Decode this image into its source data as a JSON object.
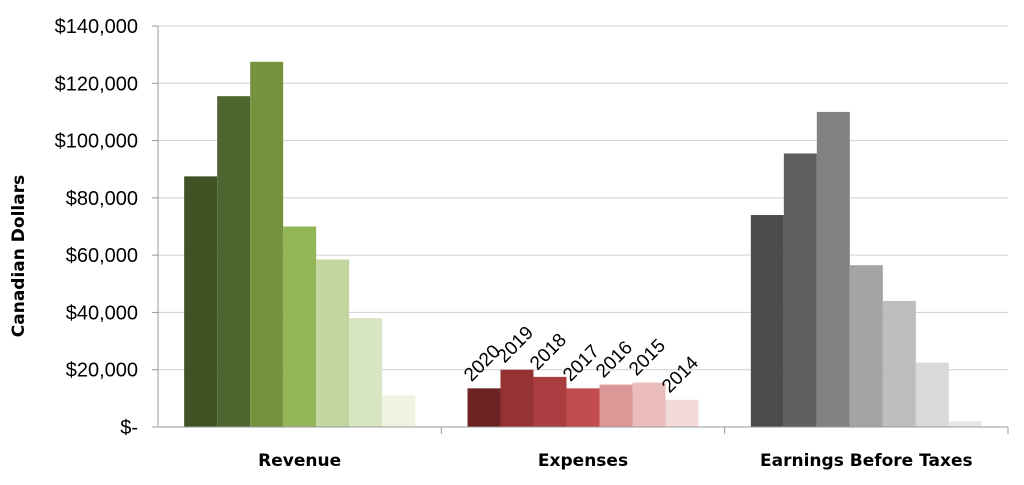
{
  "chart_data": {
    "type": "bar",
    "ylabel": "Canadian Dollars",
    "ylim": [
      0,
      140000
    ],
    "yticks": [
      0,
      20000,
      40000,
      60000,
      80000,
      100000,
      120000,
      140000
    ],
    "ytick_labels": [
      "$-",
      "$20,000",
      "$40,000",
      "$60,000",
      "$80,000",
      "$100,000",
      "$120,000",
      "$140,000"
    ],
    "grid": true,
    "categories": [
      "Revenue",
      "Expenses",
      "Earnings Before Taxes"
    ],
    "series_order": [
      "2020",
      "2019",
      "2018",
      "2017",
      "2016",
      "2015",
      "2014"
    ],
    "year_labels_group": "Expenses",
    "groups": [
      {
        "category": "Revenue",
        "values": [
          87500,
          115500,
          127500,
          70000,
          58500,
          38000,
          11000
        ],
        "colors": [
          "#3f5224",
          "#4f6530",
          "#77923f",
          "#92b558",
          "#c4d69f",
          "#d8e5c2",
          "#eef3e2"
        ]
      },
      {
        "category": "Expenses",
        "values": [
          13500,
          20000,
          17500,
          13500,
          14800,
          15500,
          9500
        ],
        "colors": [
          "#6b2323",
          "#943234",
          "#a93d3f",
          "#c24d4e",
          "#de9797",
          "#ebbcbc",
          "#f3dbdb"
        ]
      },
      {
        "category": "Earnings Before Taxes",
        "values": [
          74000,
          95500,
          110000,
          56500,
          44000,
          22500,
          2000
        ],
        "colors": [
          "#4b4b4b",
          "#5e5e5e",
          "#828282",
          "#a4a4a4",
          "#bdbdbd",
          "#d9d9d9",
          "#e8e8e8"
        ]
      }
    ]
  }
}
